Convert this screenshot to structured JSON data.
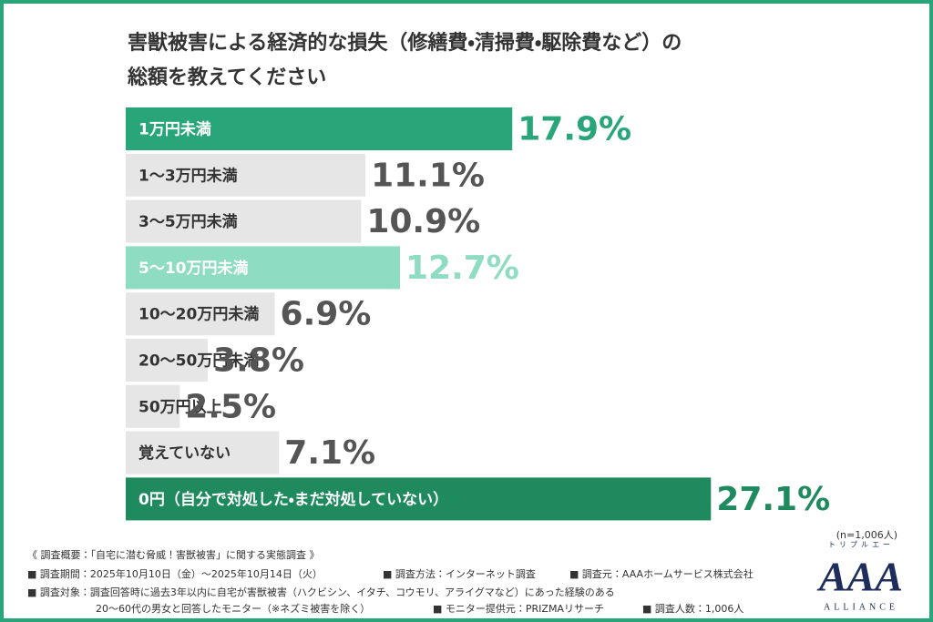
{
  "chart_data": {
    "type": "hbar",
    "title_lines": [
      "害獣被害による経済的な損失（修繕費・清掃費・駆除費など）の",
      "総額を教えてください"
    ],
    "categories": [
      "1万円未満",
      "1〜3万円未満",
      "3〜5万円未満",
      "5〜10万円未満",
      "10〜20万円未満",
      "20〜50万円未満",
      "50万円以上",
      "覚えていない",
      "0円（自分で対処した・まだ対処していない）"
    ],
    "values": [
      17.9,
      11.1,
      10.9,
      12.7,
      6.9,
      3.8,
      2.5,
      7.1,
      27.1
    ],
    "value_labels": [
      "17.9%",
      "11.1%",
      "10.9%",
      "12.7%",
      "6.9%",
      "3.8%",
      "2.5%",
      "7.1%",
      "27.1%"
    ],
    "colors": [
      "#28a67a",
      "#e6e6e6",
      "#e6e6e6",
      "#8edcc1",
      "#e6e6e6",
      "#e6e6e6",
      "#e6e6e6",
      "#e6e6e6",
      "#1f8a5e"
    ],
    "text_colors": [
      "#ffffff",
      "#333333",
      "#333333",
      "#ffffff",
      "#333333",
      "#333333",
      "#333333",
      "#333333",
      "#ffffff"
    ],
    "value_colors": [
      "#28a67a",
      "#555555",
      "#555555",
      "#8edcc1",
      "#555555",
      "#555555",
      "#555555",
      "#555555",
      "#1f8a5e"
    ],
    "sample_note": "(n=1,006人)"
  },
  "footer": {
    "lines": [
      "《 調査概要：「自宅に潜む脅威！害獣被害」に関する実態調査 》",
      "■ 調査期間：2025年10月10日（金）〜2025年10月14日（火）",
      "■ 調査方法：インターネット調査",
      "■ 調査元：AAAホームサービス株式会社",
      "■ 調査対象：調査回答時に過去3年以内に自宅が害獣被害（ハクビシン、イタチ、コウモリ、アライグマなど）にあった経験のある",
      "20〜60代の男女と回答したモニター（※ネズミ被害を除く）",
      "■ モニター提供元：PRIZMAリサーチ",
      "■ 調査人数：1,006人"
    ]
  },
  "logo": {
    "kana": "トリプルエー",
    "mark": "AAA",
    "name": "ALLIANCE"
  }
}
